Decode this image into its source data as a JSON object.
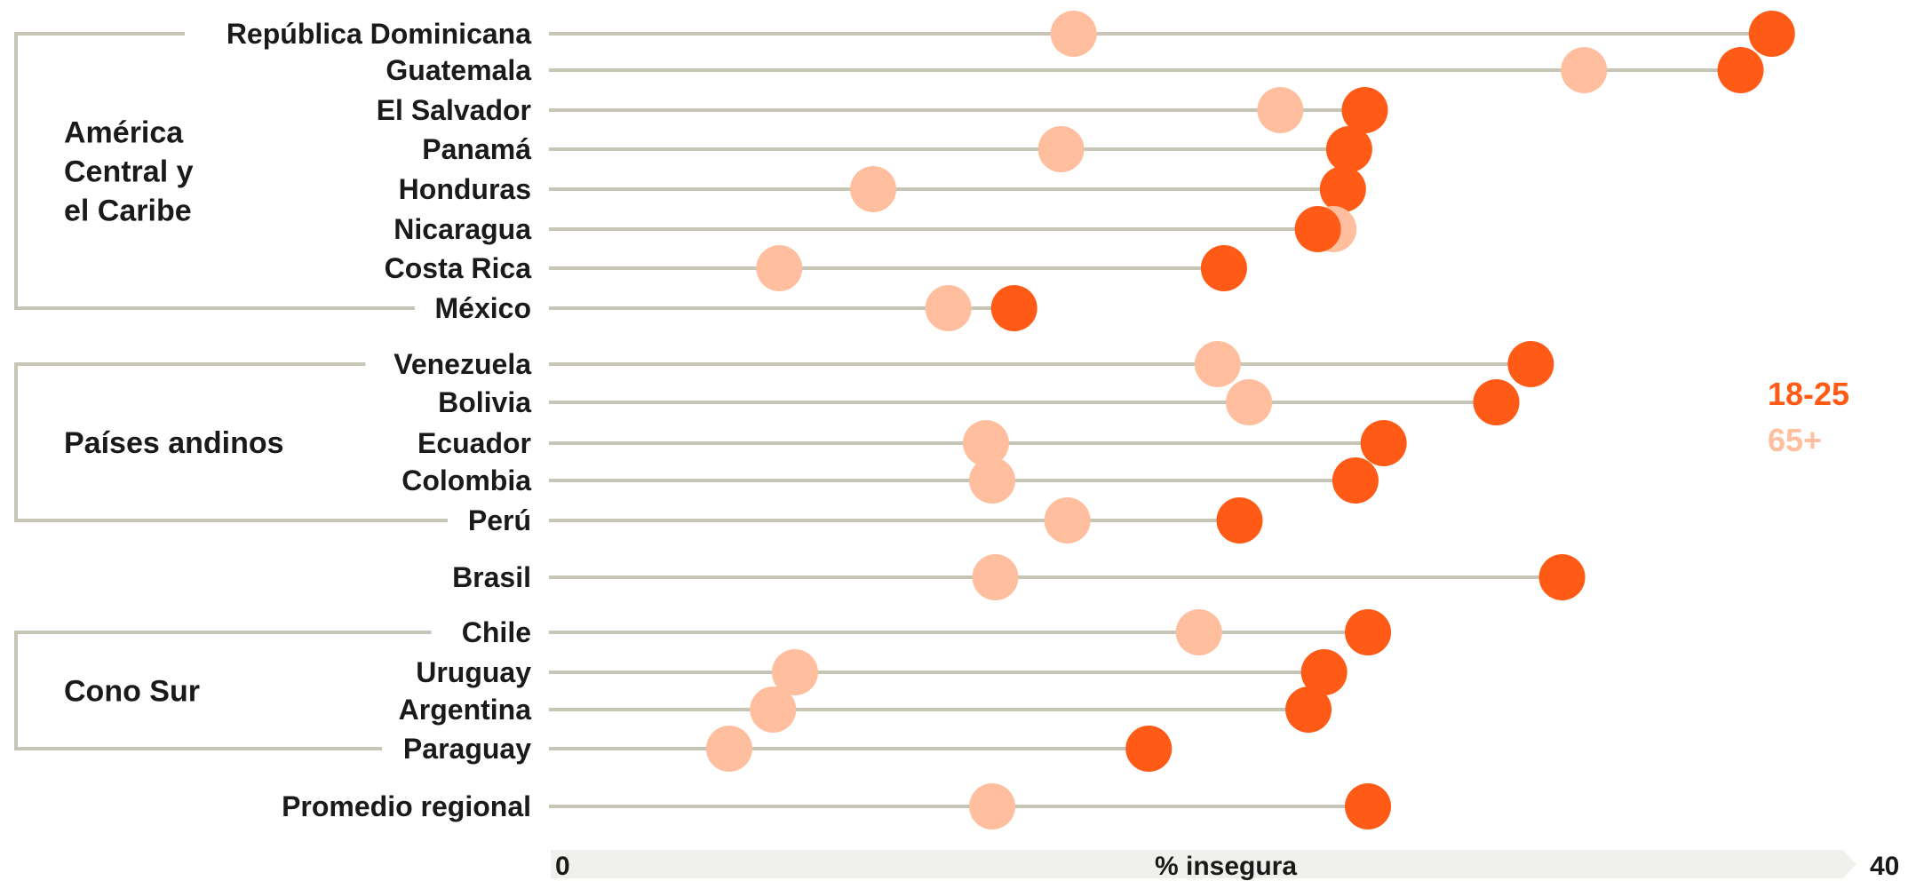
{
  "chart_data": {
    "type": "dumbbell",
    "xlabel": "% insegura",
    "xlim": [
      0,
      40
    ],
    "x_ticks": [
      "0",
      "40"
    ],
    "colors": {
      "young": "#ff5a16",
      "old": "#ffbf9f",
      "line": "#c7c5b6",
      "axis_band": "#f0f0ec"
    },
    "legend": [
      {
        "label": "18-25",
        "color": "#ff5a16"
      },
      {
        "label": "65+",
        "color": "#ffbf9f"
      }
    ],
    "series_names": [
      "18-25",
      "65+"
    ],
    "groups": [
      {
        "name": "América Central y el Caribe",
        "lines": [
          "América",
          "Central y",
          "el Caribe"
        ],
        "rows": [
          "República Dominicana",
          "Guatemala",
          "El Salvador",
          "Panamá",
          "Honduras",
          "Nicaragua",
          "Costa Rica",
          "México"
        ]
      },
      {
        "name": "Países andinos",
        "lines": [
          "Países andinos"
        ],
        "rows": [
          "Venezuela",
          "Bolivia",
          "Ecuador",
          "Colombia",
          "Perú"
        ]
      },
      {
        "name": "Cono Sur",
        "lines": [
          "Cono Sur"
        ],
        "rows": [
          "Chile",
          "Uruguay",
          "Argentina",
          "Paraguay"
        ]
      }
    ],
    "rows": [
      {
        "country": "República Dominicana",
        "v1825": 39.0,
        "v65": 16.7
      },
      {
        "country": "Guatemala",
        "v1825": 38.0,
        "v65": 33.0
      },
      {
        "country": "El Salvador",
        "v1825": 26.0,
        "v65": 23.3
      },
      {
        "country": "Panamá",
        "v1825": 25.5,
        "v65": 16.3
      },
      {
        "country": "Honduras",
        "v1825": 25.3,
        "v65": 10.3
      },
      {
        "country": "Nicaragua",
        "v1825": 24.5,
        "v65": 25.0
      },
      {
        "country": "Costa Rica",
        "v1825": 21.5,
        "v65": 7.3
      },
      {
        "country": "México",
        "v1825": 14.8,
        "v65": 12.7
      },
      {
        "country": "Venezuela",
        "v1825": 31.3,
        "v65": 21.3
      },
      {
        "country": "Bolivia",
        "v1825": 30.2,
        "v65": 22.3
      },
      {
        "country": "Ecuador",
        "v1825": 26.6,
        "v65": 13.9
      },
      {
        "country": "Colombia",
        "v1825": 25.7,
        "v65": 14.1
      },
      {
        "country": "Perú",
        "v1825": 22.0,
        "v65": 16.5
      },
      {
        "country": "Brasil",
        "v1825": 32.3,
        "v65": 14.2
      },
      {
        "country": "Chile",
        "v1825": 26.1,
        "v65": 20.7
      },
      {
        "country": "Uruguay",
        "v1825": 24.7,
        "v65": 7.8
      },
      {
        "country": "Argentina",
        "v1825": 24.2,
        "v65": 7.1
      },
      {
        "country": "Paraguay",
        "v1825": 19.1,
        "v65": 5.7
      },
      {
        "country": "Promedio regional",
        "v1825": 26.1,
        "v65": 14.1
      }
    ]
  }
}
